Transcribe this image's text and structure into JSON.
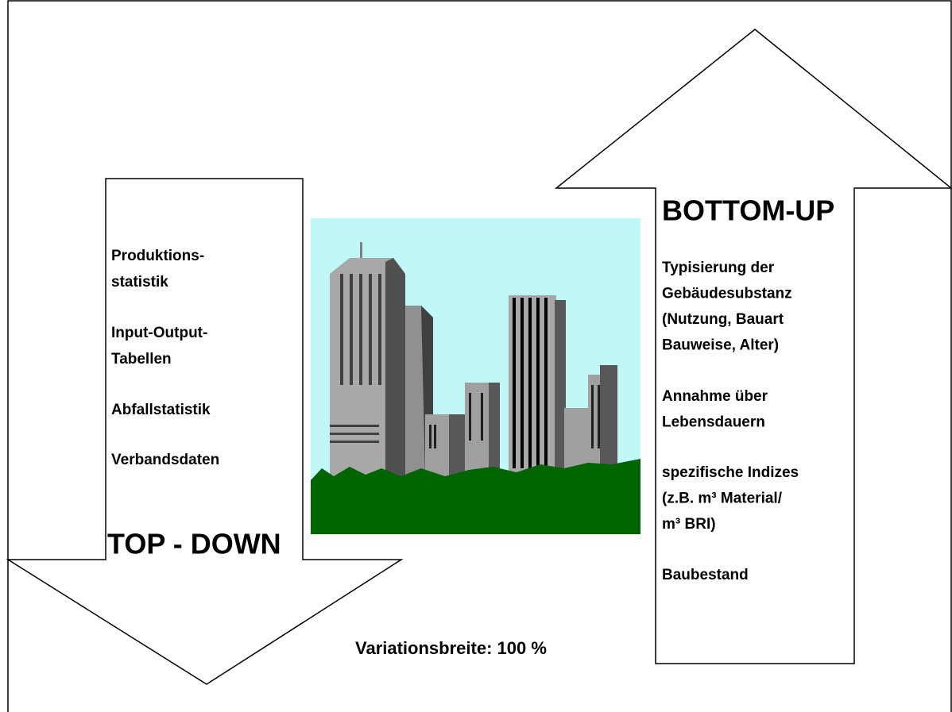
{
  "top_down": {
    "label": "TOP - DOWN",
    "items": [
      [
        "Produktions-",
        "statistik"
      ],
      [
        "Input-Output-",
        "Tabellen"
      ],
      [
        "Abfallstatistik"
      ],
      [
        "Verbandsdaten"
      ]
    ]
  },
  "bottom_up": {
    "label": "BOTTOM-UP",
    "items": [
      [
        "Typisierung der",
        "Gebäudesubstanz",
        "(Nutzung, Bauart",
        "Bauweise, Alter)"
      ],
      [
        "Annahme über",
        "Lebensdauern"
      ],
      [
        "spezifische Indizes",
        "(z.B. m³ Material/",
        "m³ BRI)"
      ],
      [
        "Baubestand"
      ]
    ]
  },
  "footer": "Variationsbreite: 100 %"
}
